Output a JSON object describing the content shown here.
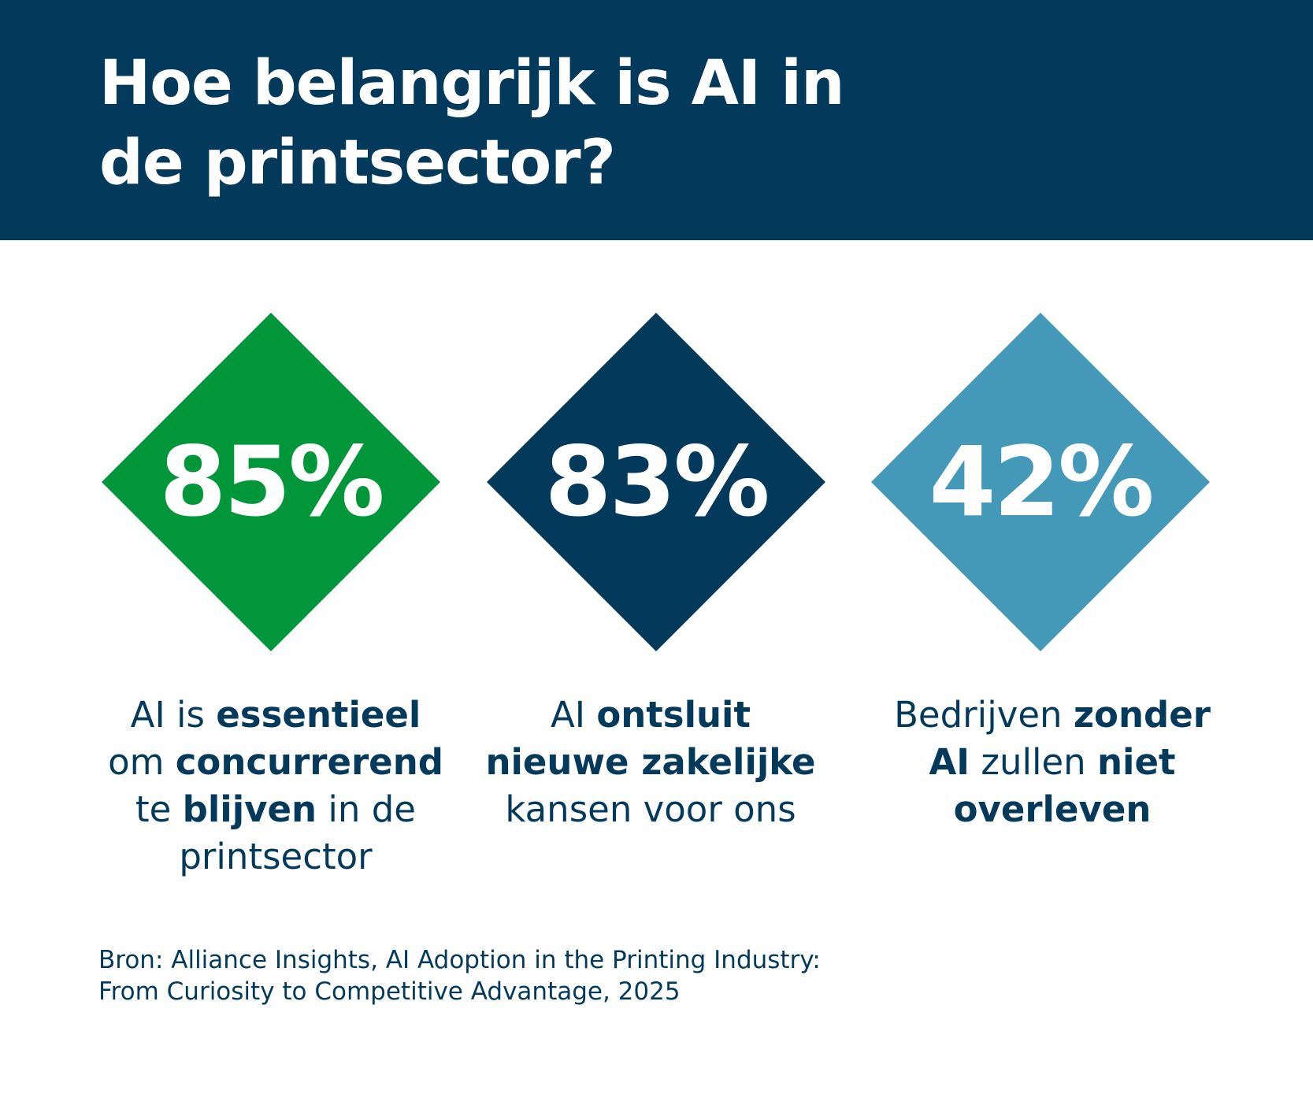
{
  "title": {
    "line1": "Hoe belangrijk is AI in",
    "line2": "de printsector?"
  },
  "colors": {
    "navy": "#033a5c",
    "green": "#009639",
    "light_blue": "#4499b8"
  },
  "stats": [
    {
      "value": "85%",
      "caption": [
        [
          "AI is ",
          "essentieel"
        ],
        [
          "om ",
          "concurrerend"
        ],
        [
          "te ",
          "blijven",
          " in de"
        ],
        [
          "printsector"
        ]
      ]
    },
    {
      "value": "83%",
      "caption": [
        [
          "AI ",
          "ontsluit"
        ],
        [
          "",
          "nieuwe zakelijke"
        ],
        [
          "kansen voor ons"
        ]
      ]
    },
    {
      "value": "42%",
      "caption": [
        [
          "Bedrijven ",
          "zonder"
        ],
        [
          "",
          "AI",
          " zullen ",
          "niet"
        ],
        [
          "",
          "overleven"
        ]
      ]
    }
  ],
  "source": {
    "line1": "Bron: Alliance Insights, AI Adoption in the Printing Industry:",
    "line2": "From Curiosity to Competitive Advantage, 2025"
  }
}
